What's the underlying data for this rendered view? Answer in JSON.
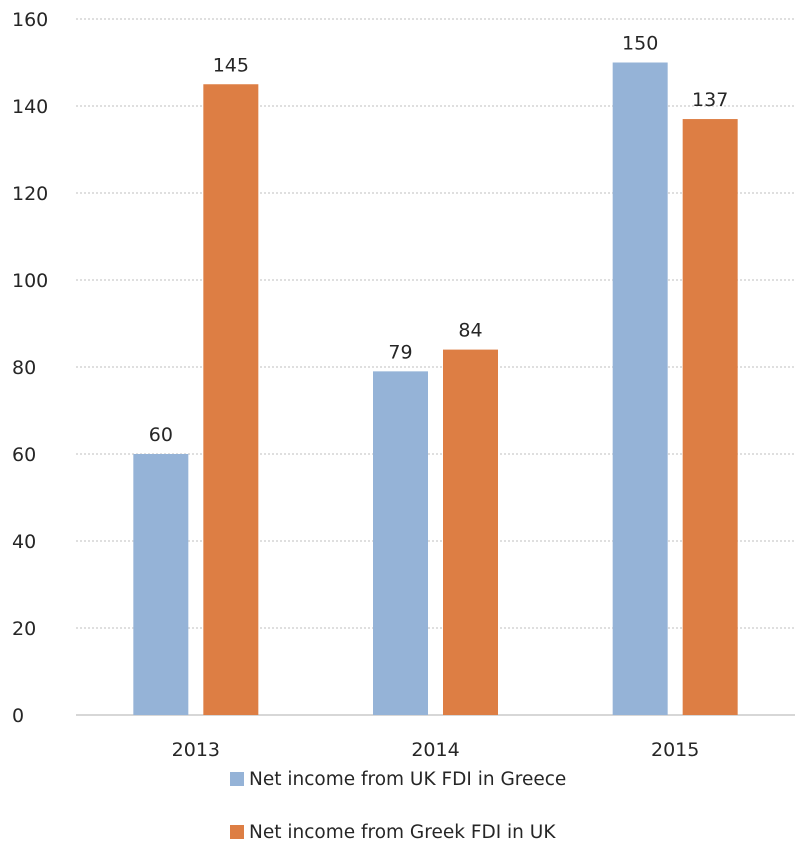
{
  "chart_data": {
    "type": "bar",
    "categories": [
      "2013",
      "2014",
      "2015"
    ],
    "series": [
      {
        "name": "Net income from UK FDI in Greece",
        "values": [
          60,
          79,
          150
        ],
        "color": "#95B3D7"
      },
      {
        "name": "Net income from Greek FDI in UK",
        "values": [
          145,
          84,
          137
        ],
        "color": "#DD7E44"
      }
    ],
    "data_labels": [
      [
        "60",
        "79",
        "150"
      ],
      [
        "145",
        "84",
        "137"
      ]
    ],
    "yticks": [
      "0",
      "20",
      "40",
      "60",
      "80",
      "100",
      "120",
      "140",
      "160"
    ],
    "ylim": [
      0,
      160
    ],
    "grid": true,
    "legend_position": "bottom"
  }
}
